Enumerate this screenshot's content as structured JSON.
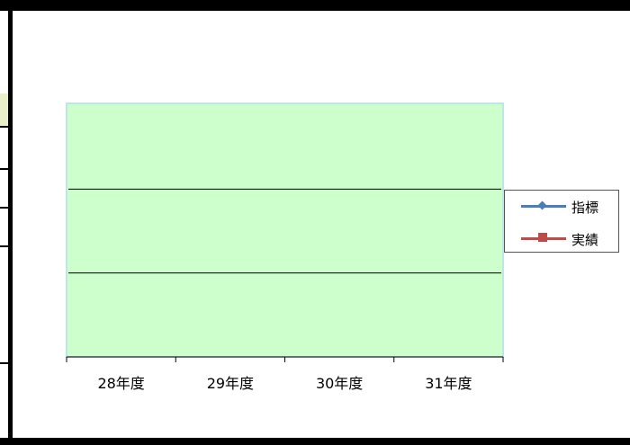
{
  "chart_data": {
    "type": "line",
    "categories": [
      "28年度",
      "29年度",
      "30年度",
      "31年度"
    ],
    "series": [
      {
        "name": "指標",
        "values": [
          null,
          null,
          null,
          null
        ],
        "color": "#4a7ebb",
        "marker": "diamond"
      },
      {
        "name": "実績",
        "values": [
          null,
          null,
          null,
          null
        ],
        "color": "#be4b48",
        "marker": "square"
      }
    ],
    "gridlines": 2,
    "plot_background": "#ccffcc",
    "legend_position": "right"
  }
}
